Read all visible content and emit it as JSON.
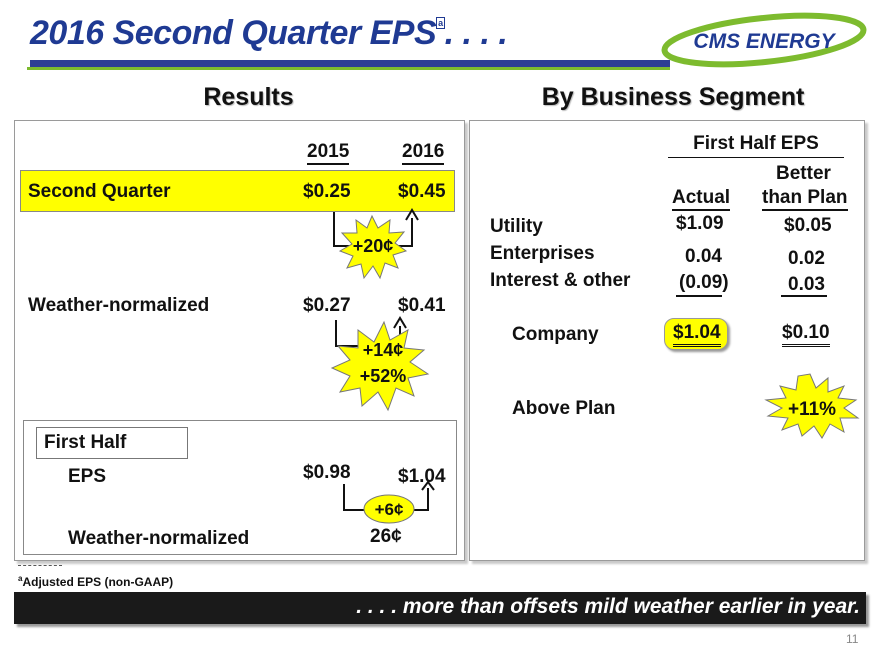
{
  "title": {
    "text": "2016 Second Quarter EPS",
    "footnote_marker": "a",
    "suffix": ". . . ."
  },
  "logo": {
    "text": "CMS ENERGY",
    "colors": {
      "ring": "#7dbb2e",
      "text": "#1f3a93"
    }
  },
  "results": {
    "heading": "Results",
    "year_2015": "2015",
    "year_2016": "2016",
    "rows": {
      "q2": {
        "label": "Second Quarter",
        "v2015": "$0.25",
        "v2016": "$0.45",
        "delta": "+20¢"
      },
      "wn": {
        "label": "Weather-normalized",
        "v2015": "$0.27",
        "v2016": "$0.41",
        "delta1": "+14¢",
        "delta2": "+52%"
      }
    },
    "first_half": {
      "label": "First Half",
      "eps_label": "EPS",
      "v2015": "$0.98",
      "v2016": "$1.04",
      "delta": "+6¢",
      "wn_label": "Weather-normalized",
      "wn_value": "26¢"
    }
  },
  "segments": {
    "heading": "By Business Segment",
    "col_group": "First Half EPS",
    "col_actual": "Actual",
    "col_better_1": "Better",
    "col_better_2": "than Plan",
    "rows": [
      {
        "label": "Utility",
        "actual": "$1.09",
        "better": "$0.05"
      },
      {
        "label": "Enterprises",
        "actual": "0.04",
        "better": "0.02"
      },
      {
        "label": "Interest & other",
        "actual": "(0.09)",
        "better": "0.03"
      }
    ],
    "company": {
      "label": "Company",
      "actual": "$1.04",
      "better": "$0.10"
    },
    "above_plan": {
      "label": "Above Plan",
      "value": "+11%"
    }
  },
  "footnote": {
    "marker": "a",
    "text": "Adjusted EPS (non-GAAP)"
  },
  "banner": ". . . . more than offsets mild weather earlier in year.",
  "page_number": "11",
  "colors": {
    "accent_blue": "#1f3a93",
    "accent_green": "#7dbb2e",
    "highlight": "#ffff00"
  }
}
